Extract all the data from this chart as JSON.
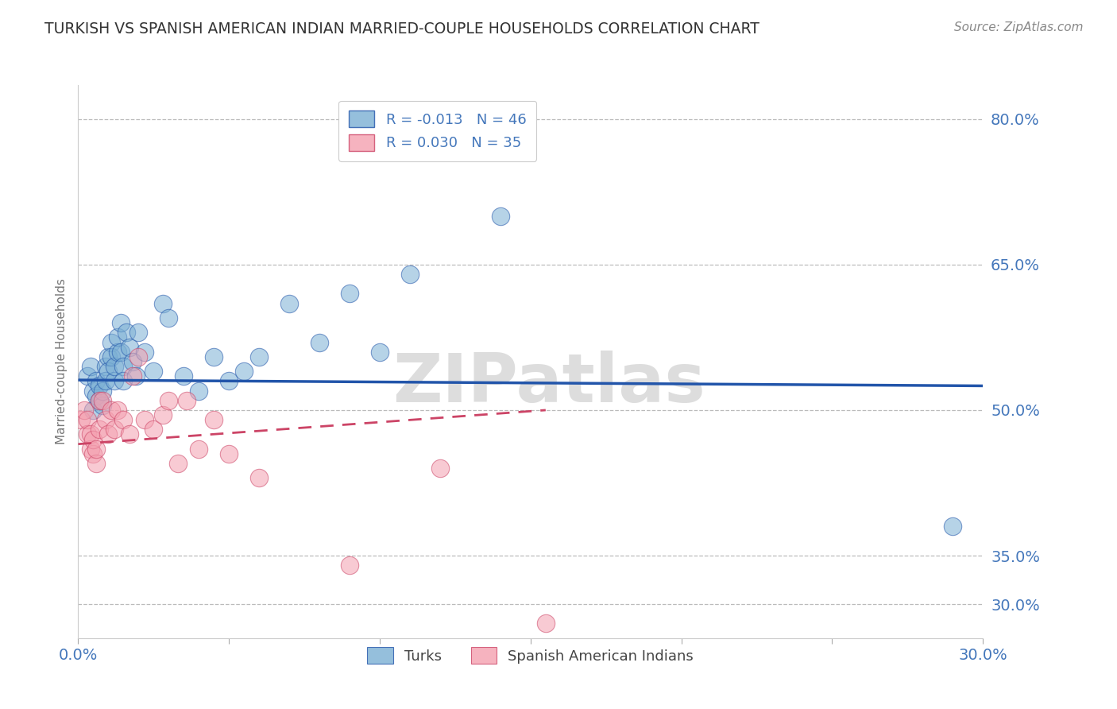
{
  "title": "TURKISH VS SPANISH AMERICAN INDIAN MARRIED-COUPLE HOUSEHOLDS CORRELATION CHART",
  "source": "Source: ZipAtlas.com",
  "ylabel": "Married-couple Households",
  "legend_label1": "Turks",
  "legend_label2": "Spanish American Indians",
  "r1": -0.013,
  "n1": 46,
  "r2": 0.03,
  "n2": 35,
  "color1": "#7BAFD4",
  "color2": "#F4A0B0",
  "trendline1_color": "#2255AA",
  "trendline2_color": "#CC4466",
  "xlim": [
    0.0,
    0.3
  ],
  "ylim": [
    0.265,
    0.835
  ],
  "ytick_positions": [
    0.3,
    0.35,
    0.5,
    0.65,
    0.8
  ],
  "ytick_labels": [
    "30.0%",
    "35.0%",
    "50.0%",
    "65.0%",
    "80.0%"
  ],
  "xtick_labels_show": [
    "0.0%",
    "30.0%"
  ],
  "xtick_show_positions": [
    0.0,
    0.3
  ],
  "background_color": "#FFFFFF",
  "grid_color": "#BBBBBB",
  "title_color": "#333333",
  "axis_label_color": "#4477BB",
  "watermark": "ZIPatlas",
  "turks_x": [
    0.003,
    0.004,
    0.005,
    0.005,
    0.006,
    0.006,
    0.007,
    0.007,
    0.008,
    0.008,
    0.009,
    0.009,
    0.01,
    0.01,
    0.011,
    0.011,
    0.012,
    0.012,
    0.013,
    0.013,
    0.014,
    0.014,
    0.015,
    0.015,
    0.016,
    0.017,
    0.018,
    0.019,
    0.02,
    0.022,
    0.025,
    0.028,
    0.03,
    0.035,
    0.04,
    0.045,
    0.05,
    0.055,
    0.06,
    0.07,
    0.08,
    0.09,
    0.1,
    0.11,
    0.14,
    0.29
  ],
  "turks_y": [
    0.535,
    0.545,
    0.5,
    0.52,
    0.515,
    0.53,
    0.51,
    0.525,
    0.505,
    0.52,
    0.545,
    0.53,
    0.555,
    0.54,
    0.57,
    0.555,
    0.53,
    0.545,
    0.56,
    0.575,
    0.59,
    0.56,
    0.545,
    0.53,
    0.58,
    0.565,
    0.55,
    0.535,
    0.58,
    0.56,
    0.54,
    0.61,
    0.595,
    0.535,
    0.52,
    0.555,
    0.53,
    0.54,
    0.555,
    0.61,
    0.57,
    0.62,
    0.56,
    0.64,
    0.7,
    0.38
  ],
  "spanish_x": [
    0.001,
    0.002,
    0.003,
    0.003,
    0.004,
    0.004,
    0.005,
    0.005,
    0.006,
    0.006,
    0.007,
    0.007,
    0.008,
    0.009,
    0.01,
    0.011,
    0.012,
    0.013,
    0.015,
    0.017,
    0.018,
    0.02,
    0.022,
    0.025,
    0.028,
    0.03,
    0.033,
    0.036,
    0.04,
    0.045,
    0.05,
    0.06,
    0.09,
    0.12,
    0.155
  ],
  "spanish_y": [
    0.49,
    0.5,
    0.475,
    0.49,
    0.46,
    0.475,
    0.455,
    0.47,
    0.445,
    0.46,
    0.51,
    0.48,
    0.51,
    0.49,
    0.475,
    0.5,
    0.48,
    0.5,
    0.49,
    0.475,
    0.535,
    0.555,
    0.49,
    0.48,
    0.495,
    0.51,
    0.445,
    0.51,
    0.46,
    0.49,
    0.455,
    0.43,
    0.34,
    0.44,
    0.28
  ],
  "turks_trendline_x": [
    0.0,
    0.3
  ],
  "turks_trendline_y": [
    0.531,
    0.525
  ],
  "spanish_trendline_x": [
    0.0,
    0.155
  ],
  "spanish_trendline_y": [
    0.465,
    0.5
  ]
}
